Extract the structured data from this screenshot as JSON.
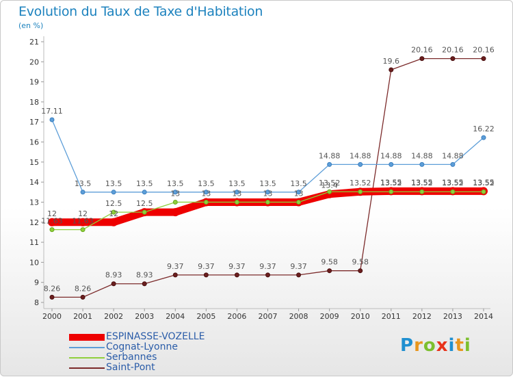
{
  "header": {
    "title": "Evolution du Taux de Taxe d'Habitation",
    "unit": "(en %)"
  },
  "logo": {
    "letters": [
      "P",
      "r",
      "o",
      "x",
      "i",
      "t",
      "i"
    ],
    "colors": [
      "#1f8fd0",
      "#e8961e",
      "#7cbf2e",
      "#e8331a",
      "#1f8fd0",
      "#e8961e",
      "#7cbf2e"
    ]
  },
  "chart_data": {
    "type": "line",
    "x": [
      2000,
      2001,
      2002,
      2003,
      2004,
      2005,
      2006,
      2007,
      2008,
      2009,
      2010,
      2011,
      2012,
      2013,
      2014
    ],
    "ylim": [
      8,
      21
    ],
    "yticks": [
      8,
      9,
      10,
      11,
      12,
      13,
      14,
      15,
      16,
      17,
      18,
      19,
      20,
      21
    ],
    "grid": false,
    "legend_position": "bottom-left",
    "series": [
      {
        "name": "ESPINASSE-VOZELLE",
        "color": "#ee0000",
        "values": [
          12,
          12,
          12,
          12.5,
          12.5,
          13,
          13,
          13,
          13,
          13.4,
          13.52,
          13.55,
          13.55,
          13.55,
          13.55
        ],
        "labels": [
          "12",
          "12",
          "12",
          "",
          "",
          "",
          "",
          "",
          "",
          "13.4",
          "",
          "13.55",
          "13.55",
          "13.55",
          "13.55"
        ]
      },
      {
        "name": "Cognat-Lyonne",
        "color": "#5d9ed8",
        "values": [
          17.11,
          13.5,
          13.5,
          13.5,
          13.5,
          13.5,
          13.5,
          13.5,
          13.5,
          14.88,
          14.88,
          14.88,
          14.88,
          14.88,
          16.22
        ],
        "labels": [
          "17.11",
          "13.5",
          "13.5",
          "13.5",
          "13.5",
          "13.5",
          "13.5",
          "13.5",
          "13.5",
          "14.88",
          "14.88",
          "14.88",
          "14.88",
          "14.88",
          "16.22"
        ]
      },
      {
        "name": "Serbannes",
        "color": "#8fcf3c",
        "values": [
          11.63,
          11.63,
          12.5,
          12.5,
          13,
          13,
          13,
          13,
          13,
          13.52,
          13.52,
          13.52,
          13.52,
          13.52,
          13.52
        ],
        "labels": [
          "11.63",
          "11.63",
          "12.5",
          "12.5",
          "13",
          "13",
          "13",
          "13",
          "13",
          "13.52",
          "13.52",
          "13.52",
          "13.52",
          "13.52",
          "13.52"
        ]
      },
      {
        "name": "Saint-Pont",
        "color": "#7b2a2a",
        "values": [
          8.26,
          8.26,
          8.93,
          8.93,
          9.37,
          9.37,
          9.37,
          9.37,
          9.37,
          9.58,
          9.58,
          19.6,
          20.16,
          20.16,
          20.16
        ],
        "labels": [
          "8.26",
          "8.26",
          "8.93",
          "8.93",
          "9.37",
          "9.37",
          "9.37",
          "9.37",
          "9.37",
          "9.58",
          "9.58",
          "19.6",
          "20.16",
          "20.16",
          "20.16"
        ]
      }
    ]
  }
}
